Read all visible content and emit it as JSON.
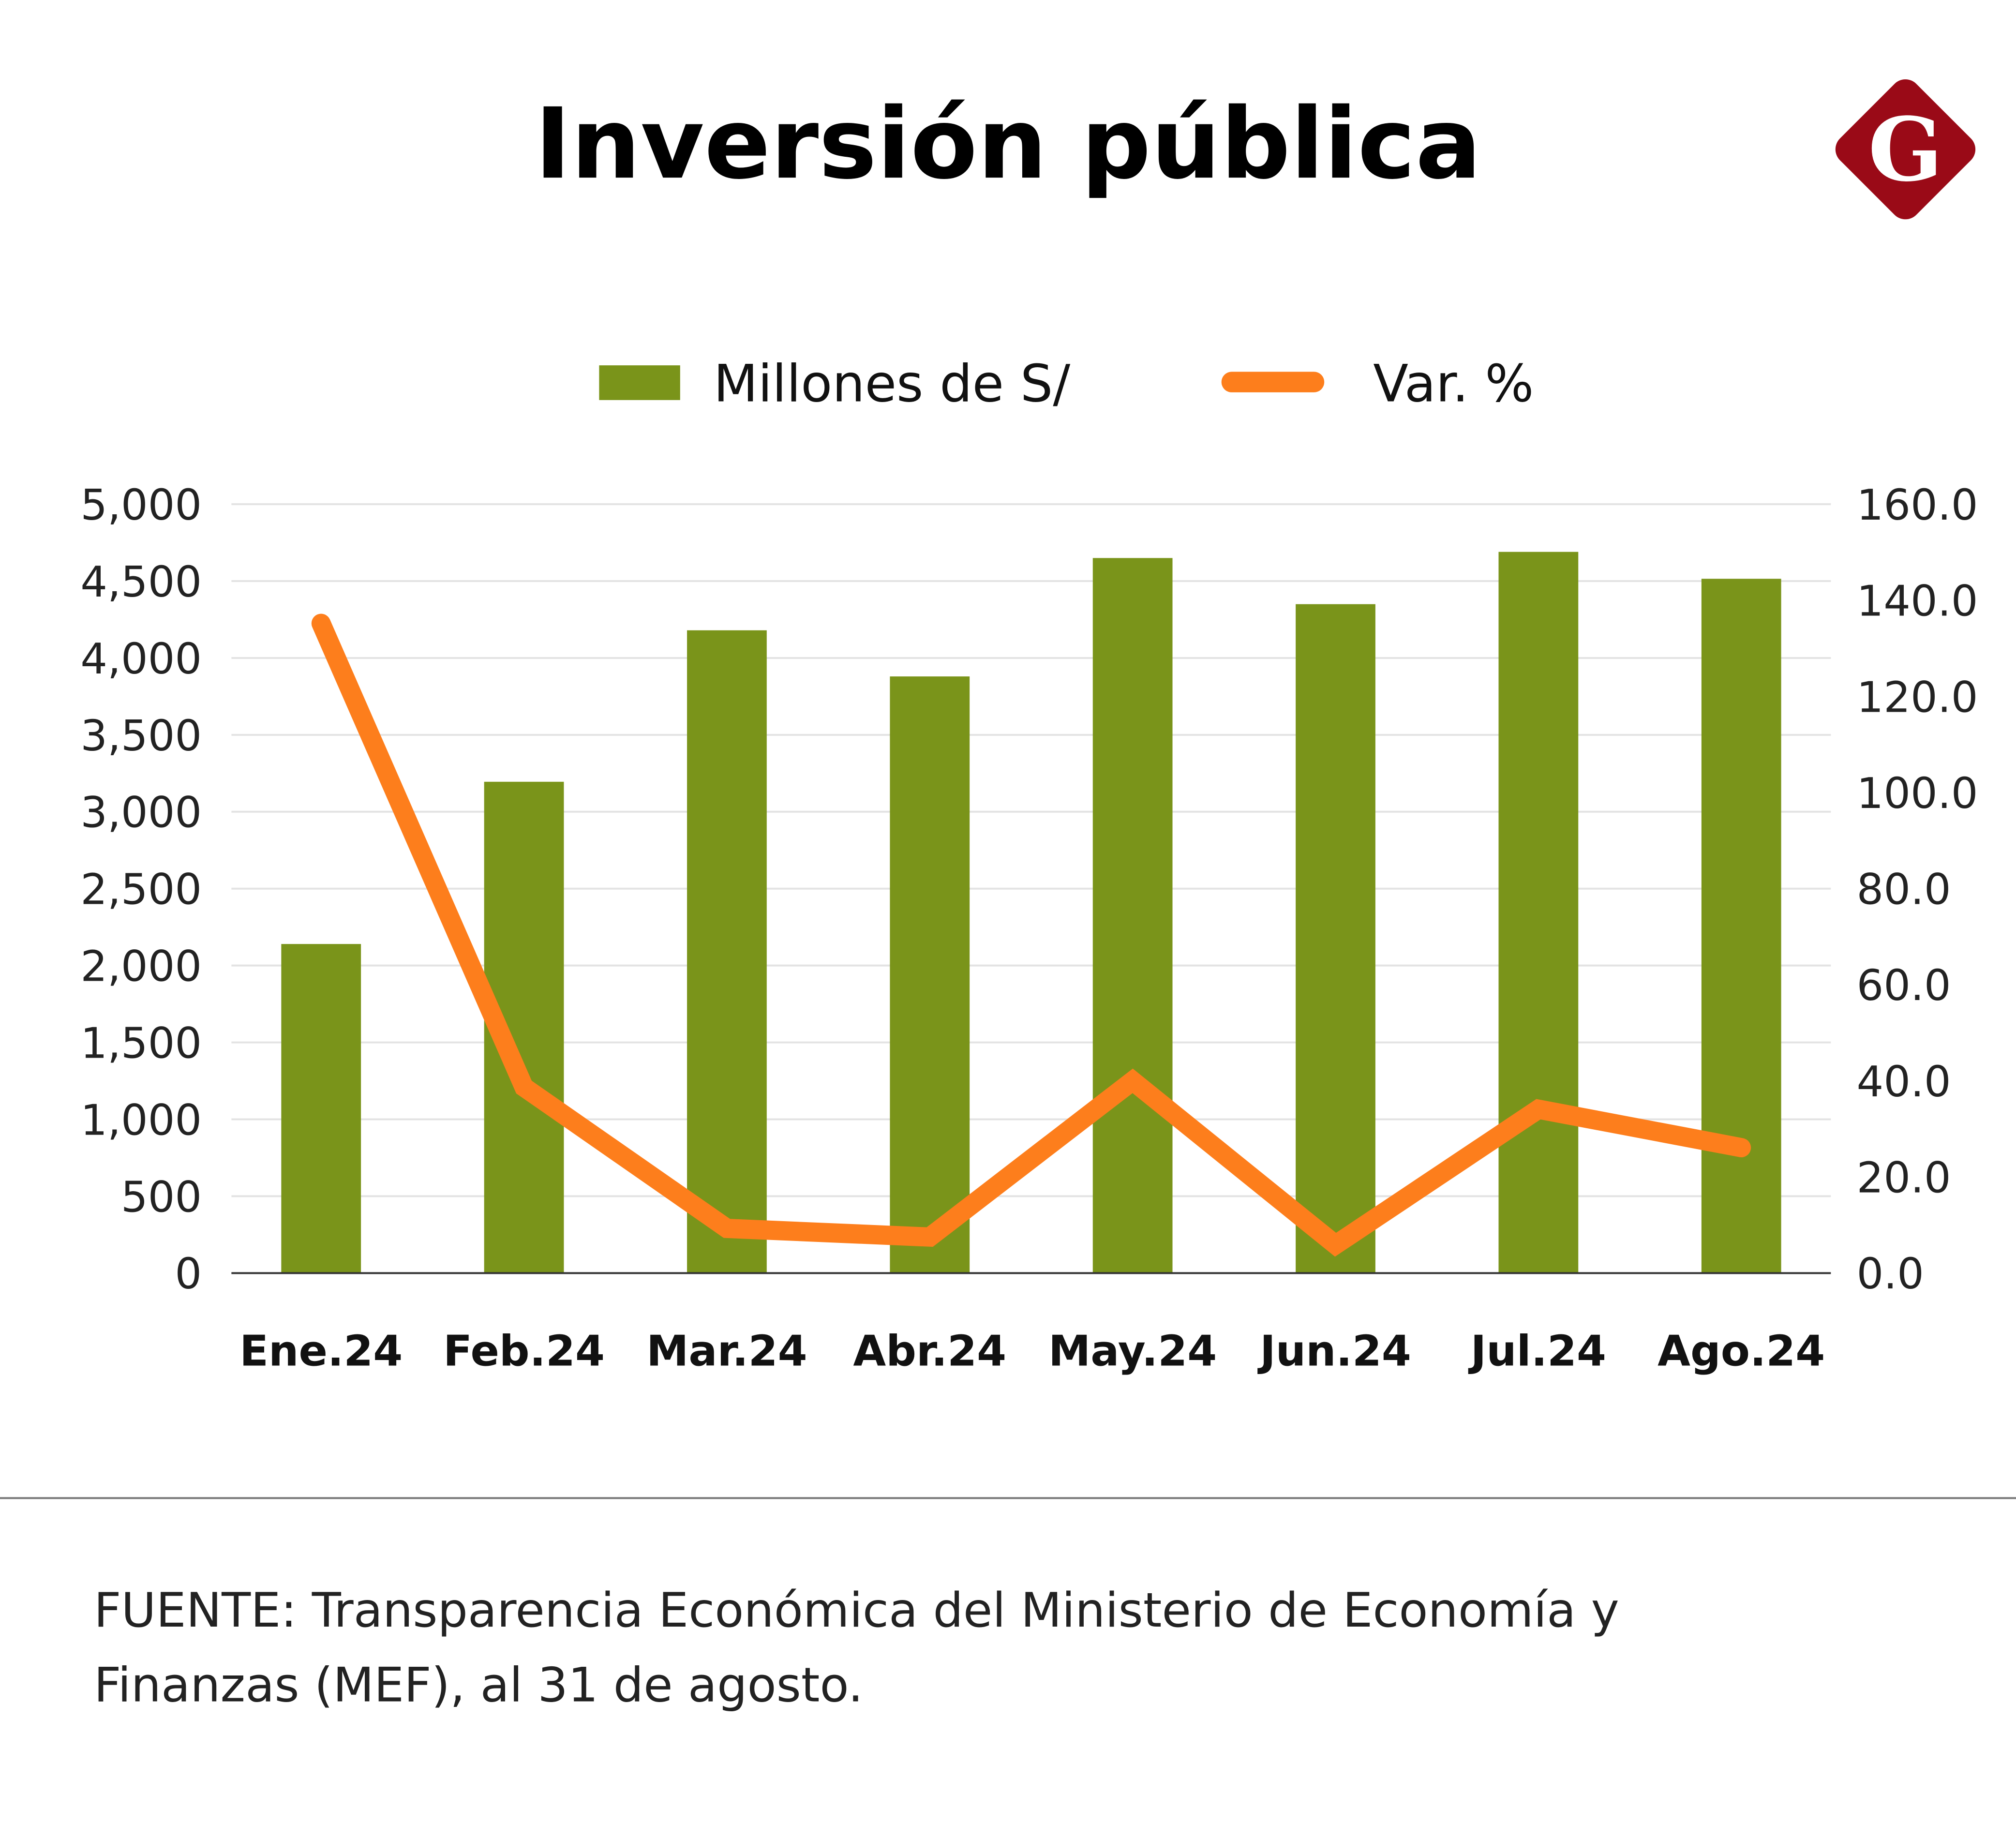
{
  "title": "Inversión pública",
  "logo": {
    "letter": "G",
    "color": "#9a0a17"
  },
  "source": {
    "line1": "FUENTE: Transparencia Económica del Ministerio de Economía y",
    "line2": "Finanzas (MEF), al 31 de agosto."
  },
  "chart_data": {
    "type": "bar+line",
    "title": "Inversión pública",
    "categories": [
      "Ene.24",
      "Feb.24",
      "Mar.24",
      "Abr.24",
      "May.24",
      "Jun.24",
      "Jul.24",
      "Ago.24"
    ],
    "series": [
      {
        "name": "Millones de S/",
        "type": "bar",
        "axis": "left",
        "color": "#7a941a",
        "values": [
          2140,
          3195,
          4180,
          3880,
          4650,
          4350,
          4690,
          4515
        ]
      },
      {
        "name": "Var. %",
        "type": "line",
        "axis": "right",
        "color": "#fd7e1c",
        "values": [
          135.2,
          38.7,
          9.3,
          7.5,
          40.0,
          5.9,
          34.1,
          26.1
        ]
      }
    ],
    "left_axis": {
      "range": [
        0,
        5000
      ],
      "ticks": [
        "0",
        "500",
        "1,000",
        "1,500",
        "2,000",
        "2,500",
        "3,000",
        "3,500",
        "4,000",
        "4,500",
        "5,000"
      ]
    },
    "right_axis": {
      "range": [
        0,
        160
      ],
      "ticks": [
        "0.0",
        "20.0",
        "40.0",
        "60.0",
        "80.0",
        "100.0",
        "120.0",
        "140.0",
        "160.0"
      ]
    },
    "grid": true,
    "legend": "top"
  }
}
